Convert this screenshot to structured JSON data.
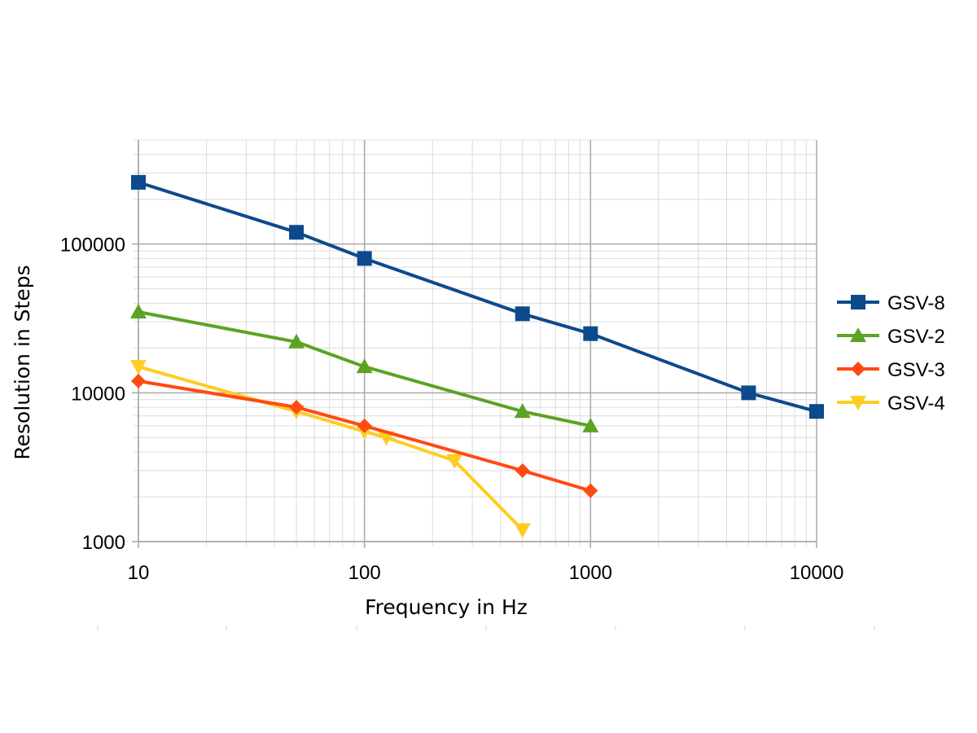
{
  "chart_data": {
    "type": "line",
    "xscale": "log",
    "yscale": "log",
    "xlim": [
      10,
      10000
    ],
    "ylim": [
      1000,
      500000
    ],
    "xlabel": "Frequency in Hz",
    "ylabel": "Resolution in Steps",
    "xticks": [
      "10",
      "100",
      "1000",
      "10000"
    ],
    "yticks": [
      "1000",
      "10000",
      "100000"
    ],
    "grid": true,
    "legend_position": "right",
    "series": [
      {
        "name": "GSV-8",
        "color": "#0d4a8c",
        "marker": "square",
        "x": [
          10,
          50,
          100,
          500,
          1000,
          5000,
          10000
        ],
        "y": [
          260000,
          120000,
          80000,
          34000,
          25000,
          10000,
          7500
        ]
      },
      {
        "name": "GSV-2",
        "color": "#5ba324",
        "marker": "triangle-up",
        "x": [
          10,
          50,
          100,
          500,
          1000
        ],
        "y": [
          35000,
          22000,
          15000,
          7500,
          6000
        ]
      },
      {
        "name": "GSV-3",
        "color": "#ff4a12",
        "marker": "diamond",
        "x": [
          10,
          50,
          100,
          500,
          1000
        ],
        "y": [
          12000,
          8000,
          6000,
          3000,
          2200
        ]
      },
      {
        "name": "GSV-4",
        "color": "#ffcc22",
        "marker": "triangle-down",
        "x": [
          10,
          50,
          100,
          125,
          250,
          500
        ],
        "y": [
          15000,
          7500,
          5500,
          5000,
          3500,
          1200
        ]
      }
    ]
  }
}
